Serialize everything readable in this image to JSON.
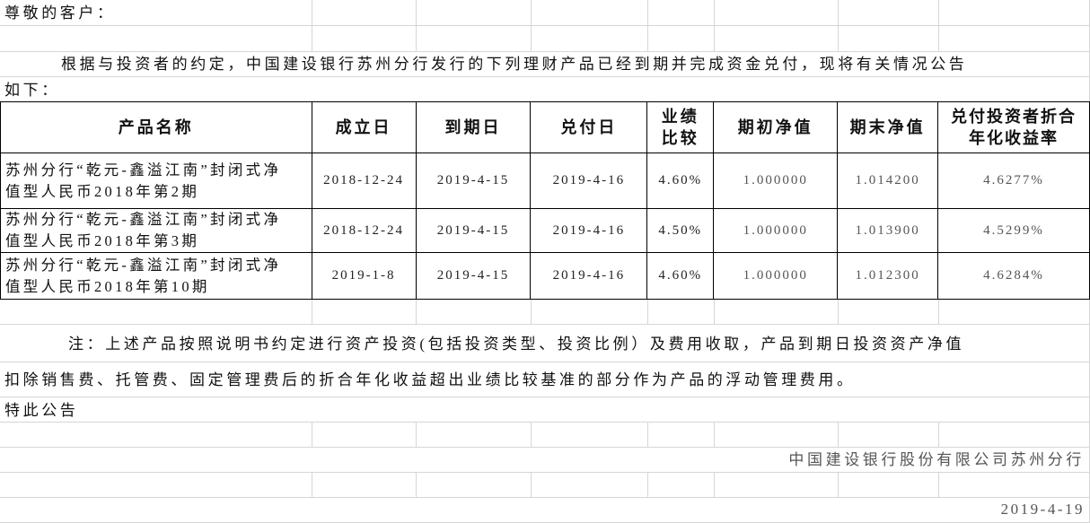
{
  "greeting": "尊敬的客户：",
  "intro_line1": "根据与投资者的约定，中国建设银行苏州分行发行的下列理财产品已经到期并完成资金兑付，现将有关情况公告",
  "intro_line2": "如下：",
  "table": {
    "headers": [
      "产品名称",
      "成立日",
      "到期日",
      "兑付日",
      "业绩比较",
      "期初净值",
      "期末净值",
      "兑付投资者折合年化收益率"
    ],
    "header_lines": {
      "benchmark": [
        "业绩",
        "比较"
      ],
      "yield": [
        "兑付投资者折合",
        "年化收益率"
      ]
    },
    "rows": [
      {
        "name": [
          "苏州分行“乾元-鑫溢江南”封闭式净",
          "值型人民币2018年第2期"
        ],
        "start": "2018-12-24",
        "maturity": "2019-4-15",
        "payment": "2019-4-16",
        "benchmark": "4.60%",
        "initial_nav": "1.000000",
        "final_nav": "1.014200",
        "annual_yield": "4.6277%"
      },
      {
        "name": [
          "苏州分行“乾元-鑫溢江南”封闭式净",
          "值型人民币2018年第3期"
        ],
        "start": "2018-12-24",
        "maturity": "2019-4-15",
        "payment": "2019-4-16",
        "benchmark": "4.50%",
        "initial_nav": "1.000000",
        "final_nav": "1.013900",
        "annual_yield": "4.5299%"
      },
      {
        "name": [
          "苏州分行“乾元-鑫溢江南”封闭式净",
          "值型人民币2018年第10期"
        ],
        "start": "2019-1-8",
        "maturity": "2019-4-15",
        "payment": "2019-4-16",
        "benchmark": "4.60%",
        "initial_nav": "1.000000",
        "final_nav": "1.012300",
        "annual_yield": "4.6284%"
      }
    ]
  },
  "note_line1": "注：上述产品按照说明书约定进行资产投资(包括投资类型、投资比例）及费用收取，产品到期日投资资产净值",
  "note_line2": "扣除销售费、托管费、固定管理费后的折合年化收益超出业绩比较基准的部分作为产品的浮动管理费用。",
  "closing": "特此公告",
  "signature": "中国建设银行股份有限公司苏州分行",
  "date": "2019-4-19"
}
